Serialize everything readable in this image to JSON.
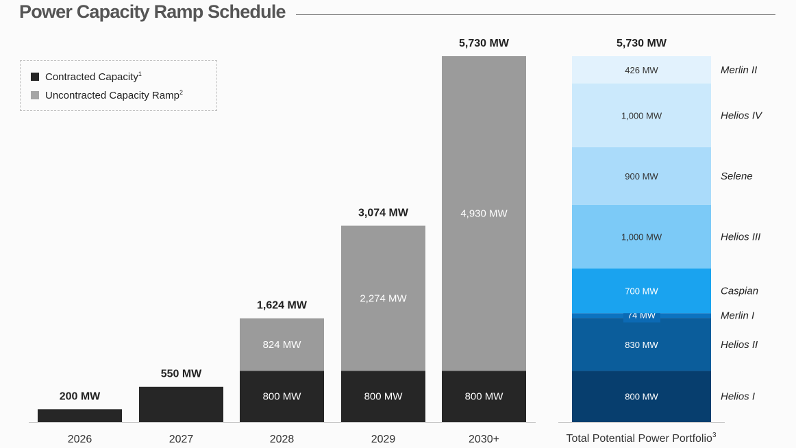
{
  "title": "Power Capacity Ramp Schedule",
  "colors": {
    "contracted": "#262626",
    "uncontracted": "#9b9b9b",
    "axis": "#bfbfbf",
    "label": "#222222"
  },
  "legend": [
    {
      "label": "Contracted Capacity",
      "sup": "1",
      "color": "#262626"
    },
    {
      "label": "Uncontracted Capacity Ramp",
      "sup": "2",
      "color": "#a6a6a6"
    }
  ],
  "chart_data": [
    {
      "type": "bar",
      "stacked": true,
      "title": "",
      "xlabel": "",
      "ylabel": "",
      "grid": false,
      "legend_position": "top-left",
      "categories": [
        "2026",
        "2027",
        "2028",
        "2029",
        "2030+"
      ],
      "series": [
        {
          "name": "Contracted Capacity",
          "values": [
            200,
            550,
            800,
            800,
            800
          ],
          "labels": [
            "",
            "",
            "800 MW",
            "800 MW",
            "800 MW"
          ]
        },
        {
          "name": "Uncontracted Capacity Ramp",
          "values": [
            0,
            0,
            824,
            2274,
            4930
          ],
          "labels": [
            "",
            "",
            "824 MW",
            "2,274 MW",
            "4,930 MW"
          ]
        }
      ],
      "totals": [
        "200 MW",
        "550 MW",
        "1,624 MW",
        "3,074 MW",
        "5,730 MW"
      ],
      "ylim": [
        0,
        5730
      ]
    },
    {
      "type": "bar",
      "stacked": true,
      "title": "",
      "xlabel": "",
      "ylabel": "",
      "grid": false,
      "categories": [
        "Total Potential Power Portfolio"
      ],
      "category_sup": "3",
      "total": "5,730 MW",
      "ylim": [
        0,
        5730
      ],
      "segments": [
        {
          "name": "Helios I",
          "value": 800,
          "label": "800 MW",
          "color": "#073e6e"
        },
        {
          "name": "Helios II",
          "value": 830,
          "label": "830 MW",
          "color": "#0b5d9b"
        },
        {
          "name": "Merlin I",
          "value": 74,
          "label": "74 MW",
          "color": "#0c73c0"
        },
        {
          "name": "Caspian",
          "value": 700,
          "label": "700 MW",
          "color": "#1aa3ef"
        },
        {
          "name": "Helios III",
          "value": 1000,
          "label": "1,000 MW",
          "color": "#7ccaf7"
        },
        {
          "name": "Selene",
          "value": 900,
          "label": "900 MW",
          "color": "#aadbfa"
        },
        {
          "name": "Helios IV",
          "value": 1000,
          "label": "1,000 MW",
          "color": "#cbe9fc"
        },
        {
          "name": "Merlin II",
          "value": 426,
          "label": "426 MW",
          "color": "#e2f2fd"
        }
      ]
    }
  ]
}
